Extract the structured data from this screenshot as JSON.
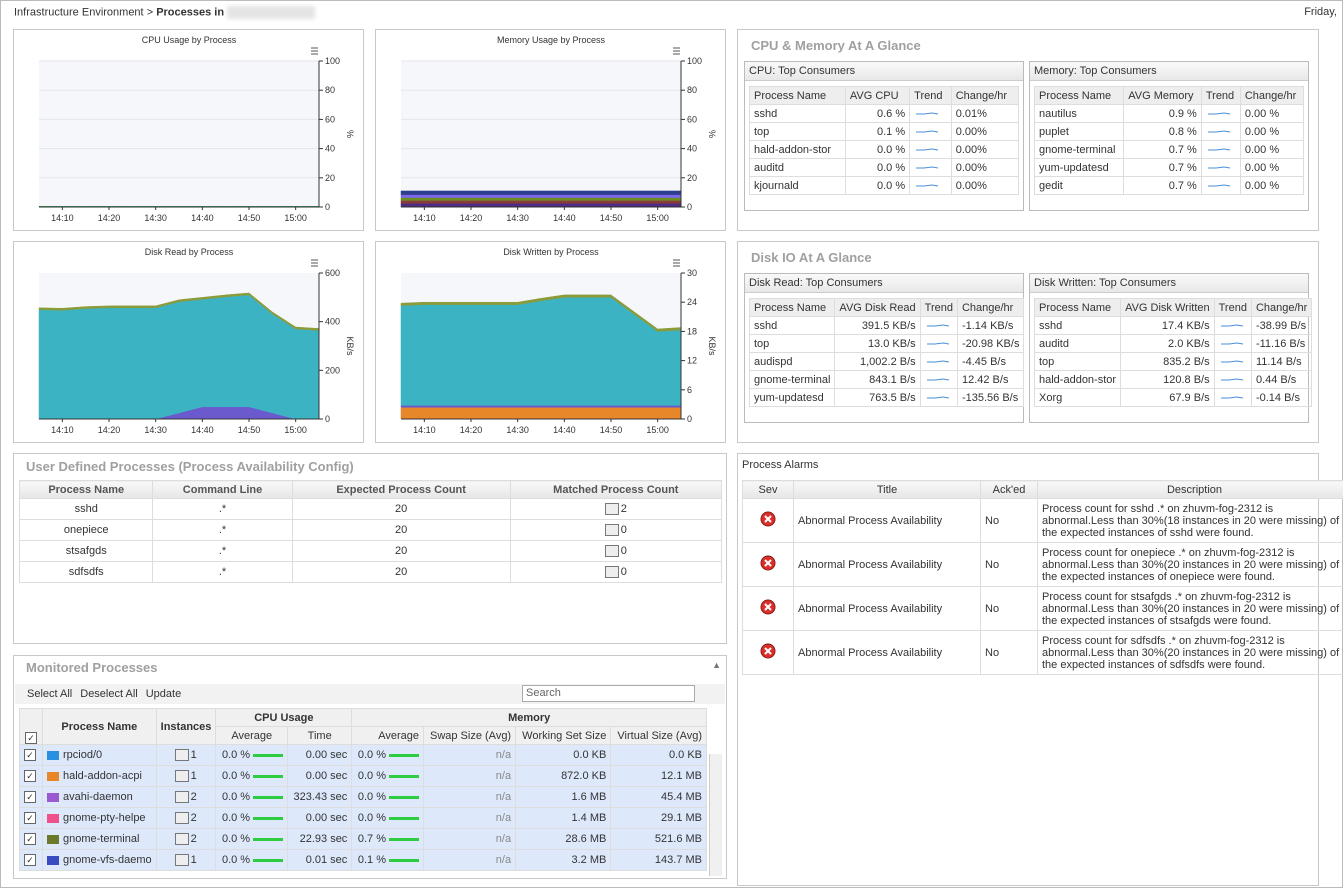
{
  "breadcrumb": {
    "root": "Infrastructure Environment",
    "current": "Processes in"
  },
  "date": "Friday,",
  "chart_data": [
    {
      "type": "area",
      "title": "CPU Usage by Process",
      "y_label": "%",
      "stacked": true,
      "grid": true,
      "categories": [
        null,
        "14:10",
        null,
        "14:20",
        null,
        "14:30",
        null,
        "14:40",
        null,
        "14:50",
        null,
        "15:00",
        null
      ],
      "ylim": [
        0,
        100
      ],
      "yticks": [
        0,
        20,
        40,
        60,
        80,
        100
      ],
      "series": [
        {
          "color": "#3a9d5d",
          "values": [
            0.5,
            0.5,
            0.5,
            0.5,
            0.5,
            0.5,
            0.5,
            0.5,
            0.5,
            0.5,
            0.5,
            0.5,
            0.5
          ]
        }
      ]
    },
    {
      "type": "area",
      "title": "Memory Usage by Process",
      "y_label": "%",
      "stacked": true,
      "grid": true,
      "categories": [
        null,
        "14:10",
        null,
        "14:20",
        null,
        "14:30",
        null,
        "14:40",
        null,
        "14:50",
        null,
        "15:00",
        null
      ],
      "ylim": [
        0,
        100
      ],
      "yticks": [
        0,
        20,
        40,
        60,
        80,
        100
      ],
      "series": [
        {
          "color": "#4b2e83",
          "values": [
            2.5,
            2.5,
            2.5,
            2.5,
            2.5,
            2.5,
            2.5,
            2.5,
            2.5,
            2.5,
            2.5,
            2.5,
            2.5
          ]
        },
        {
          "color": "#8b3a3a",
          "values": [
            2,
            2,
            2,
            2,
            2,
            2,
            2,
            2,
            2,
            2,
            2,
            2,
            2
          ]
        },
        {
          "color": "#6b8e23",
          "values": [
            2,
            2,
            2,
            2,
            2,
            2,
            2,
            2,
            2,
            2,
            2,
            2,
            2
          ]
        },
        {
          "color": "#7b68ee",
          "values": [
            2,
            2,
            2,
            2,
            2,
            2,
            2,
            2,
            2,
            2,
            2,
            2,
            2
          ]
        },
        {
          "color": "#2f3f8f",
          "values": [
            2.5,
            2.5,
            2.5,
            2.5,
            2.5,
            2.5,
            2.5,
            2.5,
            2.5,
            2.5,
            2.5,
            2.5,
            2.5
          ]
        }
      ]
    },
    {
      "type": "area",
      "title": "Disk Read by Process",
      "y_label": "KB/s",
      "stacked": true,
      "grid": false,
      "categories": [
        null,
        "14:10",
        null,
        "14:20",
        null,
        "14:30",
        null,
        "14:40",
        null,
        "14:50",
        null,
        "15:00",
        null
      ],
      "ylim": [
        0,
        600
      ],
      "yticks": [
        0,
        200,
        400,
        600
      ],
      "series": [
        {
          "color": "#6a5acd",
          "values": [
            0,
            0,
            0,
            0,
            0,
            0,
            25,
            50,
            50,
            50,
            25,
            0,
            0
          ]
        },
        {
          "color": "#3bb3c3",
          "values": [
            449,
            447,
            454,
            457,
            457,
            457,
            457,
            442,
            452,
            460,
            407,
            370,
            364
          ]
        },
        {
          "color": "#8b9b3a",
          "values": [
            8,
            8,
            8,
            8,
            8,
            8,
            8,
            8,
            8,
            8,
            8,
            8,
            8
          ]
        }
      ]
    },
    {
      "type": "area",
      "title": "Disk Written by Process",
      "y_label": "KB/s",
      "stacked": true,
      "grid": false,
      "categories": [
        null,
        "14:10",
        null,
        "14:20",
        null,
        "14:30",
        null,
        "14:40",
        null,
        "14:50",
        null,
        "15:00",
        null
      ],
      "ylim": [
        0,
        30
      ],
      "yticks": [
        0,
        6,
        12,
        18,
        24,
        30
      ],
      "series": [
        {
          "color": "#e8862a",
          "values": [
            2.4,
            2.4,
            2.4,
            2.4,
            2.4,
            2.4,
            2.4,
            2.4,
            2.4,
            2.4,
            2.4,
            2.4,
            2.4
          ]
        },
        {
          "color": "#6a5acd",
          "values": [
            0.4,
            0.4,
            0.4,
            0.4,
            0.4,
            0.4,
            0.4,
            0.4,
            0.4,
            0.4,
            0.4,
            0.4,
            0.4
          ]
        },
        {
          "color": "#3bb3c3",
          "values": [
            20.5,
            20.7,
            20.7,
            20.7,
            20.7,
            20.7,
            21.5,
            22.2,
            22.2,
            22.2,
            18.7,
            15.2,
            15.5
          ]
        },
        {
          "color": "#8b9b3a",
          "values": [
            0.5,
            0.5,
            0.5,
            0.5,
            0.5,
            0.5,
            0.5,
            0.5,
            0.5,
            0.5,
            0.5,
            0.5,
            0.5
          ]
        }
      ]
    }
  ],
  "cpu_memory_glance": {
    "title": "CPU & Memory At A Glance",
    "panels": [
      {
        "title": "CPU: Top Consumers",
        "columns": [
          "Process Name",
          "AVG CPU",
          "Trend",
          "Change/hr"
        ],
        "rows": [
          [
            "sshd",
            "0.6 %",
            "0.01%"
          ],
          [
            "top",
            "0.1 %",
            "0.00%"
          ],
          [
            "hald-addon-stor",
            "0.0 %",
            "0.00%"
          ],
          [
            "auditd",
            "0.0 %",
            "0.00%"
          ],
          [
            "kjournald",
            "0.0 %",
            "0.00%"
          ]
        ]
      },
      {
        "title": "Memory: Top Consumers",
        "columns": [
          "Process Name",
          "AVG Memory",
          "Trend",
          "Change/hr"
        ],
        "rows": [
          [
            "nautilus",
            "0.9 %",
            "0.00 %"
          ],
          [
            "puplet",
            "0.8 %",
            "0.00 %"
          ],
          [
            "gnome-terminal",
            "0.7 %",
            "0.00 %"
          ],
          [
            "yum-updatesd",
            "0.7 %",
            "0.00 %"
          ],
          [
            "gedit",
            "0.7 %",
            "0.00 %"
          ]
        ]
      }
    ]
  },
  "disk_io_glance": {
    "title": "Disk IO At A Glance",
    "panels": [
      {
        "title": "Disk Read: Top Consumers",
        "columns": [
          "Process Name",
          "AVG Disk Read",
          "Trend",
          "Change/hr"
        ],
        "rows": [
          [
            "sshd",
            "391.5 KB/s",
            "-1.14 KB/s"
          ],
          [
            "top",
            "13.0 KB/s",
            "-20.98 KB/s"
          ],
          [
            "audispd",
            "1,002.2 B/s",
            "-4.45 B/s"
          ],
          [
            "gnome-terminal",
            "843.1 B/s",
            "12.42 B/s"
          ],
          [
            "yum-updatesd",
            "763.5 B/s",
            "-135.56 B/s"
          ]
        ]
      },
      {
        "title": "Disk Written: Top Consumers",
        "columns": [
          "Process Name",
          "AVG Disk Written",
          "Trend",
          "Change/hr"
        ],
        "rows": [
          [
            "sshd",
            "17.4 KB/s",
            "-38.99 B/s"
          ],
          [
            "auditd",
            "2.0 KB/s",
            "-11.16 B/s"
          ],
          [
            "top",
            "835.2 B/s",
            "11.14 B/s"
          ],
          [
            "hald-addon-stor",
            "120.8 B/s",
            "0.44 B/s"
          ],
          [
            "Xorg",
            "67.9 B/s",
            "-0.14 B/s"
          ]
        ]
      }
    ]
  },
  "user_defined": {
    "title": "User Defined Processes (Process Availability Config)",
    "columns": [
      "Process Name",
      "Command Line",
      "Expected Process Count",
      "Matched Process Count"
    ],
    "rows": [
      [
        "sshd",
        ".*",
        20,
        2
      ],
      [
        "onepiece",
        ".*",
        20,
        0
      ],
      [
        "stsafgds",
        ".*",
        20,
        0
      ],
      [
        "sdfsdfs",
        ".*",
        20,
        0
      ]
    ]
  },
  "alarms": {
    "title": "Process Alarms",
    "columns": [
      "Sev",
      "Title",
      "Ack'ed",
      "Description"
    ],
    "rows": [
      [
        "Abnormal Process Availability",
        "No",
        "Process count for sshd .* on zhuvm-fog-2312 is abnormal.Less than 30%(18 instances in 20 were missing) of the expected instances of sshd were found."
      ],
      [
        "Abnormal Process Availability",
        "No",
        "Process count for onepiece .* on zhuvm-fog-2312 is abnormal.Less than 30%(20 instances in 20 were missing) of the expected instances of onepiece were found."
      ],
      [
        "Abnormal Process Availability",
        "No",
        "Process count for stsafgds .* on zhuvm-fog-2312 is abnormal.Less than 30%(20 instances in 20 were missing) of the expected instances of stsafgds were found."
      ],
      [
        "Abnormal Process Availability",
        "No",
        "Process count for sdfsdfs .* on zhuvm-fog-2312 is abnormal.Less than 30%(20 instances in 20 were missing) of the expected instances of sdfsdfs were found."
      ]
    ]
  },
  "monitored": {
    "title": "Monitored Processes",
    "toolbar": [
      "Select All",
      "Deselect All",
      "Update"
    ],
    "search_placeholder": "Search",
    "headers": {
      "process_name": "Process Name",
      "instances": "Instances",
      "cpu_group": "CPU Usage",
      "memory_group": "Memory",
      "cpu_columns": [
        "Average",
        "Time"
      ],
      "memory_columns": [
        "Average",
        "Swap Size (Avg)",
        "Working Set Size",
        "Virtual Size (Avg)"
      ]
    },
    "rows": [
      {
        "name": "rpciod/0",
        "color": "#2a8fe0",
        "instances": 1,
        "cpu_avg": "0.0 %",
        "cpu_time": "0.00 sec",
        "mem_avg": "0.0 %",
        "swap": "n/a",
        "working_set": "0.0 KB",
        "virtual": "0.0 KB"
      },
      {
        "name": "hald-addon-acpi",
        "color": "#e8862a",
        "instances": 1,
        "cpu_avg": "0.0 %",
        "cpu_time": "0.00 sec",
        "mem_avg": "0.0 %",
        "swap": "n/a",
        "working_set": "872.0 KB",
        "virtual": "12.1 MB"
      },
      {
        "name": "avahi-daemon",
        "color": "#9b59d0",
        "instances": 2,
        "cpu_avg": "0.0 %",
        "cpu_time": "323.43 sec",
        "mem_avg": "0.0 %",
        "swap": "n/a",
        "working_set": "1.6 MB",
        "virtual": "45.4 MB"
      },
      {
        "name": "gnome-pty-helpe",
        "color": "#f0508a",
        "instances": 2,
        "cpu_avg": "0.0 %",
        "cpu_time": "0.00 sec",
        "mem_avg": "0.0 %",
        "swap": "n/a",
        "working_set": "1.4 MB",
        "virtual": "29.1 MB"
      },
      {
        "name": "gnome-terminal",
        "color": "#6b7a2a",
        "instances": 2,
        "cpu_avg": "0.0 %",
        "cpu_time": "22.93 sec",
        "mem_avg": "0.7 %",
        "swap": "n/a",
        "working_set": "28.6 MB",
        "virtual": "521.6 MB"
      },
      {
        "name": "gnome-vfs-daemo",
        "color": "#3a4ac0",
        "instances": 1,
        "cpu_avg": "0.0 %",
        "cpu_time": "0.01 sec",
        "mem_avg": "0.1 %",
        "swap": "n/a",
        "working_set": "3.2 MB",
        "virtual": "143.7 MB"
      }
    ]
  }
}
